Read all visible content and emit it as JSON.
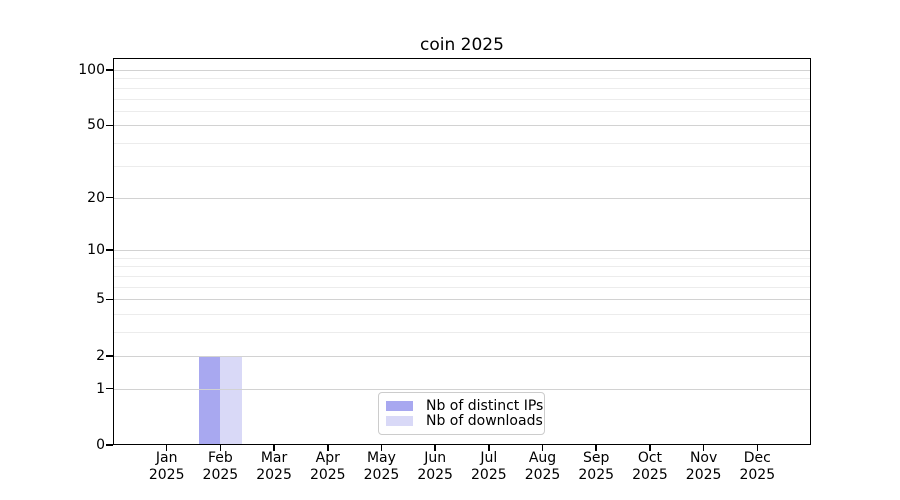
{
  "chart_data": {
    "type": "bar",
    "title": "coin 2025",
    "scale": "log1p",
    "categories": [
      "Jan",
      "Feb",
      "Mar",
      "Apr",
      "May",
      "Jun",
      "Jul",
      "Aug",
      "Sep",
      "Oct",
      "Nov",
      "Dec"
    ],
    "category_year": "2025",
    "series": [
      {
        "name": "Nb of distinct IPs",
        "color": "#a8a8f0",
        "values": [
          0,
          2,
          0,
          0,
          0,
          0,
          0,
          0,
          0,
          0,
          0,
          0
        ]
      },
      {
        "name": "Nb of downloads",
        "color": "#d9d9f7",
        "values": [
          0,
          2,
          0,
          0,
          0,
          0,
          0,
          0,
          0,
          0,
          0,
          0
        ]
      }
    ],
    "yticks": [
      0,
      1,
      2,
      5,
      10,
      20,
      50,
      100
    ],
    "minor_yticks": [
      3,
      4,
      6,
      7,
      8,
      9,
      30,
      40,
      60,
      70,
      80,
      90
    ],
    "ylim": [
      0,
      116
    ],
    "grid": true,
    "legend_position": "lower center",
    "colors": {
      "major_grid": "#d2d2d2",
      "minor_grid": "#ececec",
      "spine": "#000000",
      "text": "#000000",
      "background": "#ffffff"
    }
  }
}
